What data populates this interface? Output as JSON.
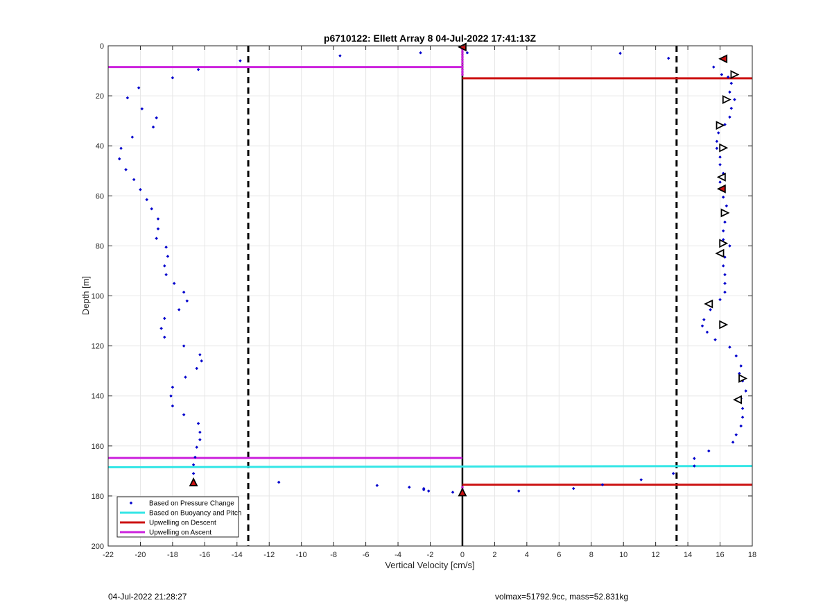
{
  "chart_data": {
    "type": "scatter",
    "title": "p6710122: Ellett Array 8 04-Jul-2022 17:41:13Z",
    "xlabel": "Vertical Velocity [cm/s]",
    "ylabel": "Depth [m]",
    "xlim": [
      -22,
      18
    ],
    "ylim": [
      0,
      200
    ],
    "y_reversed": true,
    "grid": true,
    "x_ticks": [
      -22,
      -20,
      -18,
      -16,
      -14,
      -12,
      -10,
      -8,
      -6,
      -4,
      -2,
      0,
      2,
      4,
      6,
      8,
      10,
      12,
      14,
      16,
      18
    ],
    "y_ticks": [
      0,
      20,
      40,
      60,
      80,
      100,
      120,
      140,
      160,
      180,
      200
    ],
    "legend_position": "bottom-left",
    "series": [
      {
        "name": "Based on Pressure Change",
        "color": "#0000cc",
        "marker": "dot",
        "points": [
          [
            -2.6,
            2.8
          ],
          [
            0.3,
            2.8
          ],
          [
            9.8,
            3.0
          ],
          [
            -7.6,
            4.0
          ],
          [
            12.8,
            5.0
          ],
          [
            -13.8,
            6.0
          ],
          [
            16.2,
            5.5
          ],
          [
            15.6,
            8.5
          ],
          [
            -16.4,
            9.5
          ],
          [
            16.1,
            11.5
          ],
          [
            -18.0,
            12.8
          ],
          [
            16.5,
            12.5
          ],
          [
            16.7,
            15.0
          ],
          [
            -20.1,
            16.8
          ],
          [
            16.6,
            18.5
          ],
          [
            -20.8,
            20.8
          ],
          [
            16.9,
            21.5
          ],
          [
            -19.9,
            25.2
          ],
          [
            16.7,
            25.0
          ],
          [
            16.6,
            28.5
          ],
          [
            -19.0,
            28.8
          ],
          [
            -19.2,
            32.5
          ],
          [
            16.3,
            31.5
          ],
          [
            15.9,
            34.8
          ],
          [
            -20.5,
            36.5
          ],
          [
            15.8,
            38.2
          ],
          [
            15.8,
            41.0
          ],
          [
            -21.2,
            41.0
          ],
          [
            16.0,
            44.5
          ],
          [
            -21.3,
            45.2
          ],
          [
            16.0,
            47.5
          ],
          [
            -20.9,
            49.5
          ],
          [
            16.2,
            51.0
          ],
          [
            -20.4,
            53.5
          ],
          [
            16.0,
            54.5
          ],
          [
            -20.0,
            57.5
          ],
          [
            16.1,
            57.0
          ],
          [
            16.2,
            60.5
          ],
          [
            -19.6,
            61.5
          ],
          [
            16.4,
            64.0
          ],
          [
            -19.3,
            65.2
          ],
          [
            16.2,
            67.5
          ],
          [
            -18.9,
            69.2
          ],
          [
            16.3,
            70.5
          ],
          [
            -18.9,
            73.2
          ],
          [
            16.2,
            74.0
          ],
          [
            -19.0,
            77.0
          ],
          [
            16.2,
            77.5
          ],
          [
            -18.4,
            80.5
          ],
          [
            16.6,
            80.0
          ],
          [
            -18.3,
            84.2
          ],
          [
            16.3,
            84.5
          ],
          [
            -18.5,
            88.0
          ],
          [
            16.2,
            88.0
          ],
          [
            -18.4,
            91.5
          ],
          [
            16.3,
            91.5
          ],
          [
            -17.9,
            95.0
          ],
          [
            16.3,
            95.0
          ],
          [
            -17.3,
            98.5
          ],
          [
            16.3,
            98.5
          ],
          [
            -17.1,
            102.0
          ],
          [
            16.0,
            101.5
          ],
          [
            -17.6,
            105.5
          ],
          [
            15.4,
            105.5
          ],
          [
            -18.5,
            109.0
          ],
          [
            15.0,
            109.5
          ],
          [
            -18.7,
            113.0
          ],
          [
            14.9,
            112.0
          ],
          [
            -18.5,
            116.5
          ],
          [
            15.2,
            114.5
          ],
          [
            15.7,
            117.5
          ],
          [
            -17.3,
            120.0
          ],
          [
            16.6,
            120.5
          ],
          [
            -16.3,
            123.5
          ],
          [
            17.0,
            124.0
          ],
          [
            -16.2,
            126.0
          ],
          [
            17.3,
            128.0
          ],
          [
            -16.5,
            129.0
          ],
          [
            17.2,
            131.0
          ],
          [
            -17.2,
            132.5
          ],
          [
            17.4,
            134.0
          ],
          [
            -18.0,
            136.5
          ],
          [
            17.6,
            138.0
          ],
          [
            -18.1,
            140.0
          ],
          [
            17.3,
            141.0
          ],
          [
            -18.0,
            144.0
          ],
          [
            17.4,
            145.0
          ],
          [
            -17.3,
            147.5
          ],
          [
            17.4,
            148.5
          ],
          [
            17.3,
            152.0
          ],
          [
            -16.4,
            151.0
          ],
          [
            -16.3,
            154.5
          ],
          [
            17.0,
            155.5
          ],
          [
            -16.3,
            157.5
          ],
          [
            16.8,
            158.5
          ],
          [
            -16.5,
            160.5
          ],
          [
            15.3,
            162.0
          ],
          [
            -16.6,
            164.5
          ],
          [
            14.4,
            165.0
          ],
          [
            -16.7,
            167.5
          ],
          [
            14.4,
            168.0
          ],
          [
            13.1,
            171.0
          ],
          [
            -16.7,
            171.0
          ],
          [
            11.1,
            173.5
          ],
          [
            -11.4,
            174.5
          ],
          [
            8.7,
            175.5
          ],
          [
            -5.3,
            175.8
          ],
          [
            -3.3,
            176.5
          ],
          [
            6.9,
            177.0
          ],
          [
            -2.4,
            177.0
          ],
          [
            -2.4,
            177.5
          ],
          [
            -2.1,
            178.0
          ],
          [
            3.5,
            178.0
          ],
          [
            -0.6,
            178.5
          ]
        ]
      },
      {
        "name": "Based on Buoyancy and Pitch",
        "color": "#33e6e6",
        "marker": "line",
        "line": {
          "x": [
            -22,
            18
          ],
          "y": [
            168.5,
            168.0
          ]
        }
      },
      {
        "name": "Upwelling on Descent",
        "color": "#cc1111",
        "marker": "line",
        "lines": [
          {
            "x": [
              0,
              18
            ],
            "y": [
              13.0,
              13.0
            ]
          },
          {
            "x": [
              0,
              18
            ],
            "y": [
              175.5,
              175.5
            ]
          }
        ]
      },
      {
        "name": "Upwelling on Ascent",
        "color": "#cc22dd",
        "marker": "line",
        "lines": [
          {
            "x": [
              -22,
              0
            ],
            "y": [
              8.5,
              8.5
            ]
          },
          {
            "x": [
              -22,
              0
            ],
            "y": [
              164.8,
              164.8
            ]
          }
        ]
      }
    ],
    "triangle_markers": [
      {
        "x": 16.2,
        "y": 5.2,
        "dir": "left",
        "filled": true
      },
      {
        "x": 16.9,
        "y": 11.5,
        "dir": "right"
      },
      {
        "x": 16.4,
        "y": 21.5,
        "dir": "right"
      },
      {
        "x": 16.0,
        "y": 31.8,
        "dir": "right"
      },
      {
        "x": 16.2,
        "y": 40.8,
        "dir": "right"
      },
      {
        "x": 16.1,
        "y": 52.5,
        "dir": "left"
      },
      {
        "x": 16.1,
        "y": 57.2,
        "dir": "left",
        "filled": true
      },
      {
        "x": 16.3,
        "y": 66.8,
        "dir": "right"
      },
      {
        "x": 16.2,
        "y": 79.0,
        "dir": "right"
      },
      {
        "x": 16.0,
        "y": 83.0,
        "dir": "left"
      },
      {
        "x": 15.3,
        "y": 103.2,
        "dir": "left"
      },
      {
        "x": 16.2,
        "y": 111.5,
        "dir": "right"
      },
      {
        "x": 17.4,
        "y": 133.0,
        "dir": "right"
      },
      {
        "x": 17.1,
        "y": 141.5,
        "dir": "left"
      },
      {
        "x": -16.7,
        "y": 174.5,
        "dir": "up",
        "filled": true
      },
      {
        "x": 0.0,
        "y": 0.5,
        "dir": "left",
        "filled": true
      },
      {
        "x": 0.0,
        "y": 178.5,
        "dir": "up",
        "filled": true
      }
    ],
    "surface_markers": {
      "x": 0.0,
      "y": [
        1.5,
        2.5,
        3.5,
        4.5,
        5.5,
        6.5,
        7.5,
        8.5,
        9.5,
        10.5,
        11.5,
        176.5,
        177.5,
        178.5,
        179.5
      ],
      "color": "#cc22dd"
    },
    "vertical_lines": [
      {
        "x": 0.0,
        "style": "solid",
        "color": "#000000",
        "y": [
          0,
          200
        ]
      },
      {
        "x": -13.3,
        "style": "dashed",
        "color": "#000000",
        "y": [
          0,
          200
        ]
      },
      {
        "x": 13.3,
        "style": "dashed",
        "color": "#000000",
        "y": [
          0,
          200
        ]
      }
    ]
  },
  "footer": {
    "left": "04-Jul-2022 21:28:27",
    "right": "volmax=51792.9cc, mass=52.831kg"
  }
}
